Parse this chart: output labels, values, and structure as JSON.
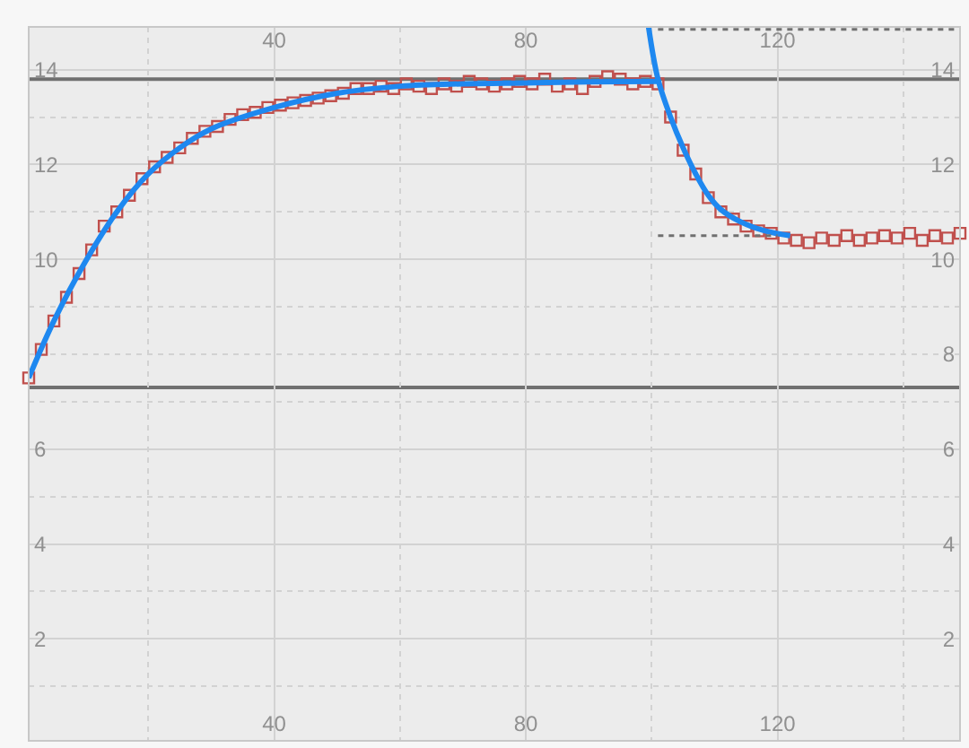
{
  "chart_data": {
    "type": "scatter",
    "xlim": [
      1,
      149
    ],
    "ylim": [
      -0.15,
      14.9
    ],
    "xticks": [
      {
        "value": 20,
        "label": null
      },
      40,
      {
        "value": 60,
        "label": null
      },
      80,
      {
        "value": 100,
        "label": null
      },
      120,
      {
        "value": 140,
        "label": null
      }
    ],
    "x2lim": [
      1,
      149
    ],
    "x2ticks": [
      40,
      80,
      120
    ],
    "yticks": [
      {
        "value": 1,
        "label": null
      },
      2,
      {
        "value": 3,
        "label": null
      },
      4,
      {
        "value": 5,
        "label": null
      },
      6,
      {
        "value": 7,
        "label": null
      },
      {
        "value": 8,
        "label": null
      },
      {
        "value": 9,
        "label": null
      },
      10,
      {
        "value": 11,
        "label": null
      },
      12,
      {
        "value": 13,
        "label": null
      },
      14
    ],
    "y2lim": [
      -0.15,
      14.9
    ],
    "y2ticks": [
      2,
      4,
      6,
      8,
      10,
      12,
      14
    ],
    "grid": true,
    "series": [
      {
        "marker": "square",
        "color": "#c0504d",
        "x": [
          1,
          3,
          5,
          7,
          9,
          11,
          13,
          15,
          17,
          19,
          21,
          23,
          25,
          27,
          29,
          31,
          33,
          35,
          37,
          39,
          41,
          43,
          45,
          47,
          49,
          51,
          53,
          55,
          57,
          59,
          61,
          63,
          65,
          67,
          69,
          71,
          73,
          75,
          77,
          79,
          81,
          83,
          85,
          87,
          89,
          91,
          93,
          95,
          97,
          99,
          101,
          103,
          105,
          107,
          109,
          111,
          113,
          115,
          117,
          119,
          121,
          123,
          125,
          127,
          129,
          131,
          133,
          135,
          137,
          139,
          141,
          143,
          145,
          147,
          149
        ],
        "values": [
          7.5,
          8.1,
          8.7,
          9.2,
          9.7,
          10.2,
          10.7,
          11.0,
          11.35,
          11.7,
          11.95,
          12.15,
          12.35,
          12.55,
          12.7,
          12.8,
          12.95,
          13.05,
          13.1,
          13.2,
          13.25,
          13.3,
          13.35,
          13.4,
          13.45,
          13.5,
          13.6,
          13.6,
          13.65,
          13.6,
          13.7,
          13.65,
          13.6,
          13.7,
          13.65,
          13.75,
          13.7,
          13.65,
          13.7,
          13.75,
          13.7,
          13.8,
          13.65,
          13.7,
          13.6,
          13.75,
          13.85,
          13.8,
          13.7,
          13.75,
          13.7,
          13.0,
          12.3,
          11.8,
          11.3,
          11.0,
          10.85,
          10.7,
          10.6,
          10.55,
          10.45,
          10.4,
          10.35,
          10.45,
          10.4,
          10.5,
          10.4,
          10.45,
          10.5,
          10.45,
          10.55,
          10.4,
          10.5,
          10.45,
          10.55
        ]
      },
      {
        "type": "line",
        "marker": "none",
        "line_style": "solid",
        "color": "#1e88f0",
        "x": [
          1,
          5,
          10,
          15,
          20,
          25,
          30,
          40,
          50,
          60,
          70,
          80,
          90,
          101
        ],
        "values": [
          7.5,
          8.7,
          9.95,
          11.0,
          11.8,
          12.35,
          12.75,
          13.2,
          13.5,
          13.65,
          13.7,
          13.72,
          13.74,
          13.75
        ]
      },
      {
        "type": "line",
        "marker": "none",
        "line_style": "solid",
        "color": "#1e88f0",
        "x": [
          99.5,
          101,
          103,
          105,
          107,
          109,
          111,
          114,
          118,
          122
        ],
        "values": [
          14.9,
          13.8,
          13.0,
          12.35,
          11.8,
          11.35,
          11.05,
          10.8,
          10.6,
          10.5
        ]
      },
      {
        "type": "line",
        "marker": "none",
        "line_style": "dotted",
        "color": "#707070",
        "x": [
          101,
          149
        ],
        "values": [
          14.85,
          14.85
        ]
      },
      {
        "type": "line",
        "marker": "none",
        "line_style": "dotted",
        "color": "#707070",
        "x": [
          101,
          120
        ],
        "values": [
          10.5,
          10.5
        ]
      }
    ],
    "ref_lines": [
      {
        "axis": "y",
        "value": 13.8,
        "color": "#707070"
      },
      {
        "axis": "y",
        "value": 7.3,
        "color": "#707070"
      }
    ]
  }
}
